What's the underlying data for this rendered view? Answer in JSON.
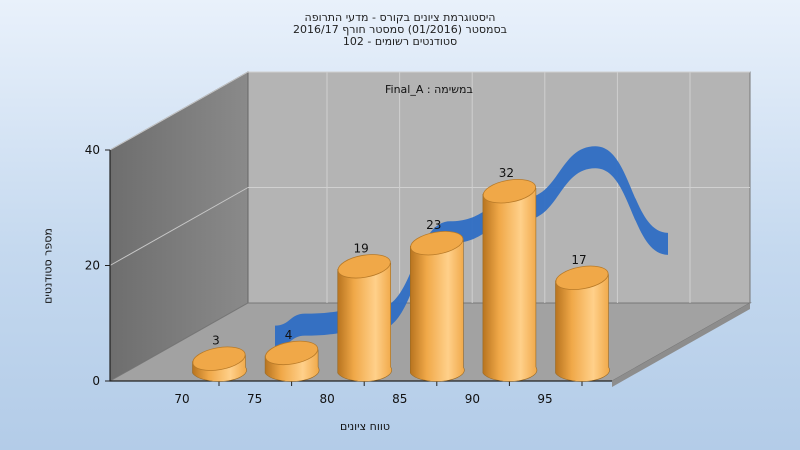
{
  "title_lines": [
    "היסטוגרמת ציונים בקורס - מדעי התרופה",
    "בסמסטר  (01/2016)  סמסטר חורף 2016/17",
    "סטודנטים רשומים - 102"
  ],
  "annotation": "Final_A : במשימה",
  "chart_data": {
    "type": "bar",
    "categories": [
      "70",
      "75",
      "80",
      "85",
      "90",
      "95"
    ],
    "values": [
      3,
      4,
      19,
      23,
      32,
      17
    ],
    "trend_line": [
      3,
      4,
      19,
      23,
      32,
      17
    ],
    "xlabel": "טווח ציונים",
    "ylabel": "מספר סטודנטים",
    "ylim": [
      0,
      40
    ],
    "yticks": [
      "0",
      "20",
      "40"
    ],
    "grid": true,
    "colors": {
      "bar_light": "#ffd08a",
      "bar_mid": "#f0a848",
      "bar_dark": "#b8741f",
      "ribbon": "#2f6ec4",
      "back_wall": "#b4b4b4",
      "side_wall": "#8a8a8a",
      "floor": "#a2a2a2"
    }
  }
}
